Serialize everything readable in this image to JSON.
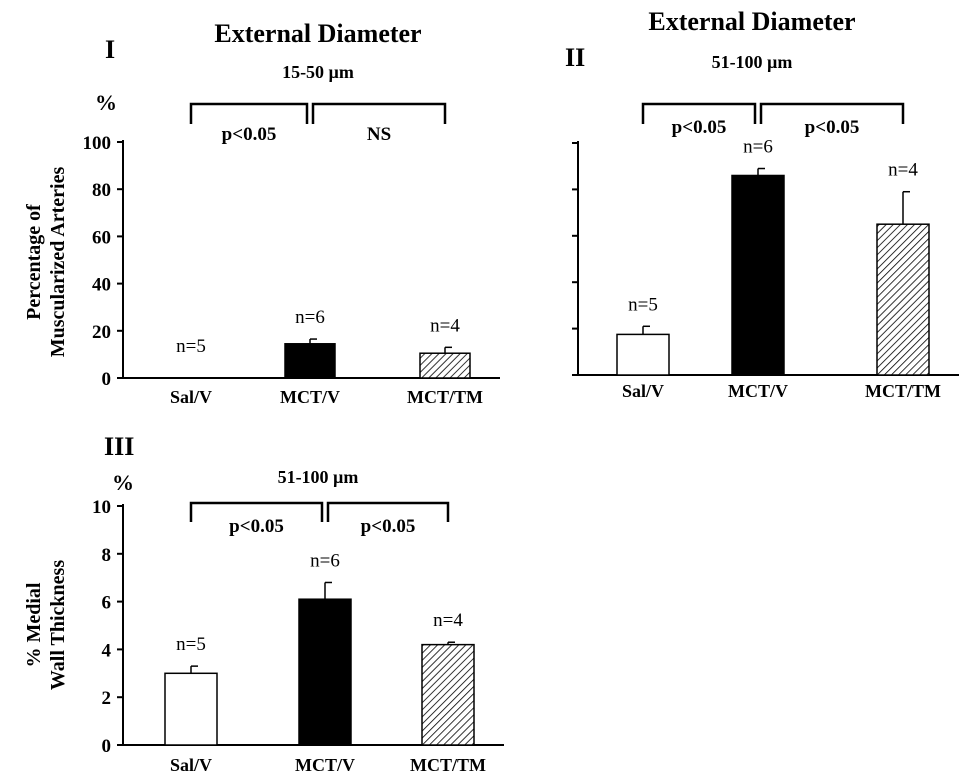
{
  "colors": {
    "ink": "#000000",
    "background": "#ffffff"
  },
  "chart_data": [
    {
      "type": "bar",
      "panel_label": "I",
      "title": "External Diameter",
      "subtitle": "15-50 µm",
      "ylabel": "Percentage of Muscularized Arteries",
      "yunit": "%",
      "ylim": [
        0,
        100
      ],
      "yticks": [
        "0",
        "20",
        "40",
        "60",
        "80",
        "100"
      ],
      "categories": [
        "Sal/V",
        "MCT/V",
        "MCT/TM"
      ],
      "values": [
        0,
        14.5,
        10.5
      ],
      "errors": [
        0,
        2,
        2.5
      ],
      "bar_fill": [
        "white",
        "black",
        "hatched"
      ],
      "n_labels": [
        "n=5",
        "n=6",
        "n=4"
      ],
      "comparisons": [
        {
          "from": 0,
          "to": 1,
          "label": "p<0.05"
        },
        {
          "from": 1,
          "to": 2,
          "label": "NS"
        }
      ]
    },
    {
      "type": "bar",
      "panel_label": "II",
      "title": "External Diameter",
      "subtitle": "51-100 µm",
      "ylabel": "",
      "ylim": [
        0,
        100
      ],
      "yticks": [
        "",
        "",
        "",
        "",
        "",
        ""
      ],
      "categories": [
        "Sal/V",
        "MCT/V",
        "MCT/TM"
      ],
      "values": [
        17.5,
        86,
        65
      ],
      "errors": [
        3.5,
        3,
        14
      ],
      "bar_fill": [
        "white",
        "black",
        "hatched"
      ],
      "n_labels": [
        "n=5",
        "n=6",
        "n=4"
      ],
      "comparisons": [
        {
          "from": 0,
          "to": 1,
          "label": "p<0.05"
        },
        {
          "from": 1,
          "to": 2,
          "label": "p<0.05"
        }
      ]
    },
    {
      "type": "bar",
      "panel_label": "III",
      "title": "",
      "subtitle": "51-100 µm",
      "ylabel": "% Medial Wall Thickness",
      "yunit": "%",
      "ylim": [
        0,
        10
      ],
      "yticks": [
        "0",
        "2",
        "4",
        "6",
        "8",
        "10"
      ],
      "categories": [
        "Sal/V",
        "MCT/V",
        "MCT/TM"
      ],
      "values": [
        3.0,
        6.1,
        4.2
      ],
      "errors": [
        0.3,
        0.7,
        0.1
      ],
      "bar_fill": [
        "white",
        "black",
        "hatched"
      ],
      "n_labels": [
        "n=5",
        "n=6",
        "n=4"
      ],
      "comparisons": [
        {
          "from": 0,
          "to": 1,
          "label": "p<0.05"
        },
        {
          "from": 1,
          "to": 2,
          "label": "p<0.05"
        }
      ]
    }
  ]
}
